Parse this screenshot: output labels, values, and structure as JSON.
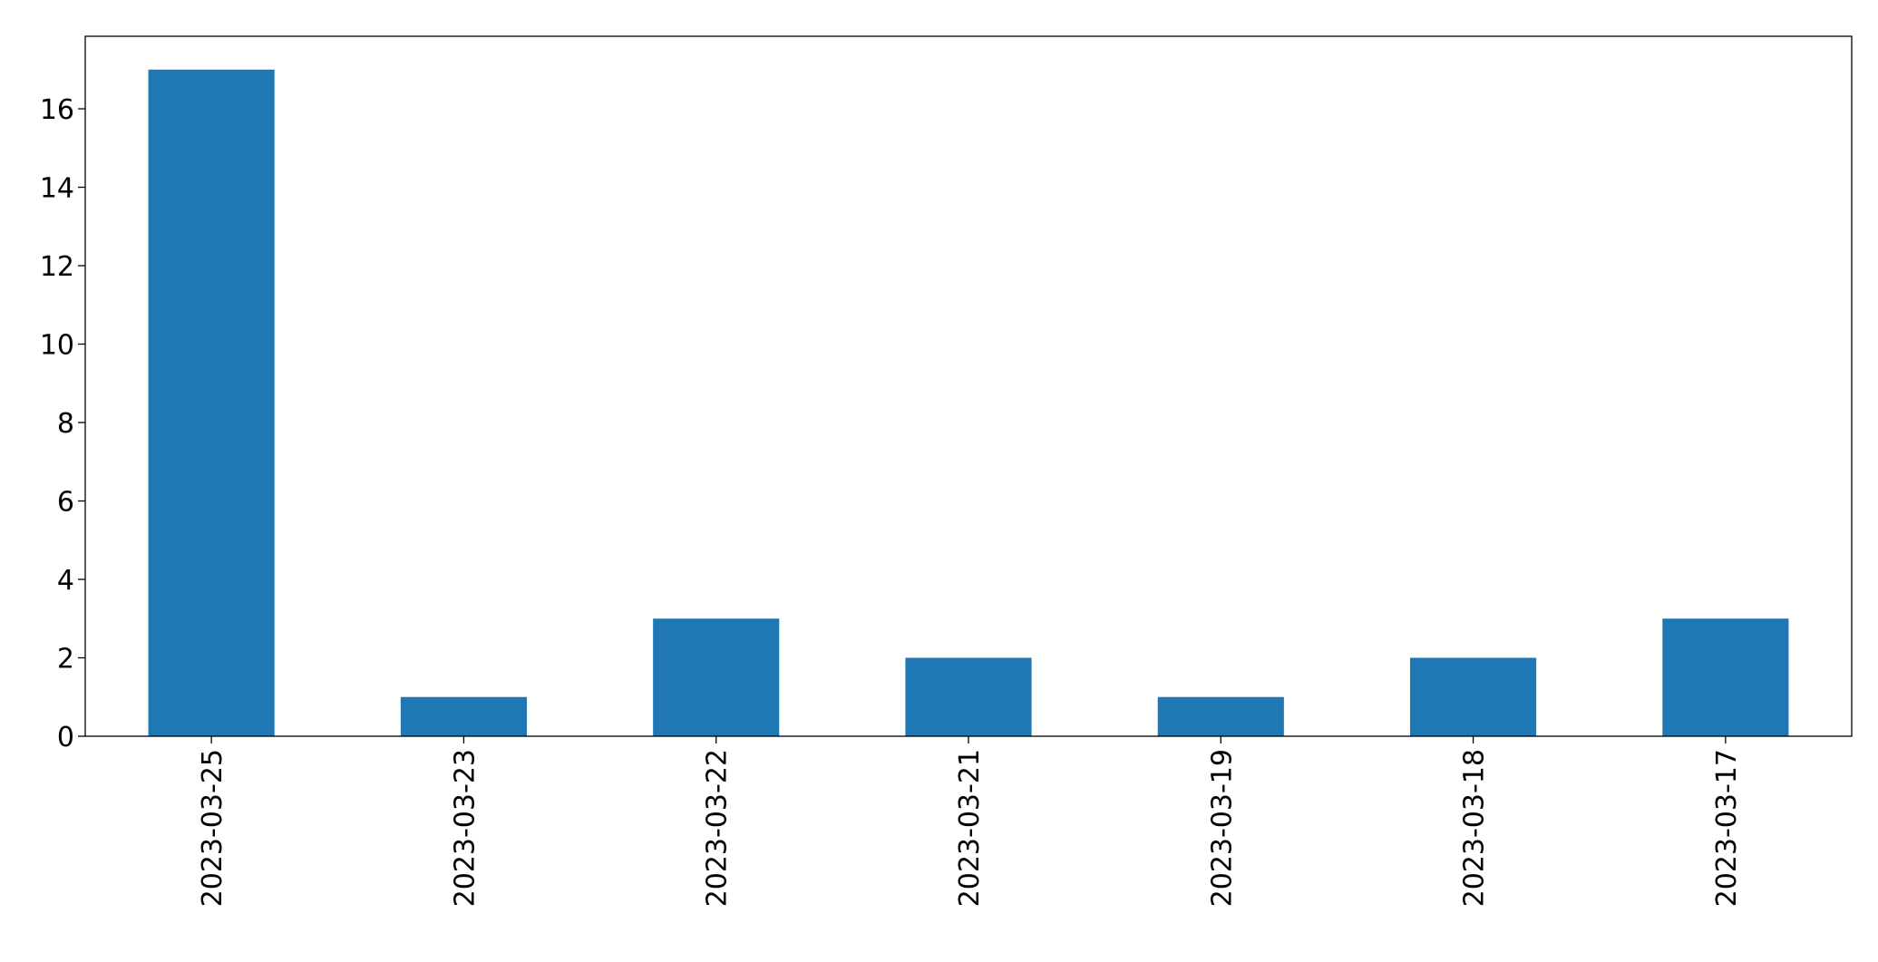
{
  "chart_data": {
    "type": "bar",
    "categories": [
      "2023-03-25",
      "2023-03-23",
      "2023-03-22",
      "2023-03-21",
      "2023-03-19",
      "2023-03-18",
      "2023-03-17"
    ],
    "values": [
      17,
      1,
      3,
      2,
      1,
      2,
      3
    ],
    "color": "#1f77b4",
    "ylim": [
      0,
      17.85
    ],
    "yticks": [
      0,
      2,
      4,
      6,
      8,
      10,
      12,
      14,
      16
    ],
    "grid": false
  }
}
